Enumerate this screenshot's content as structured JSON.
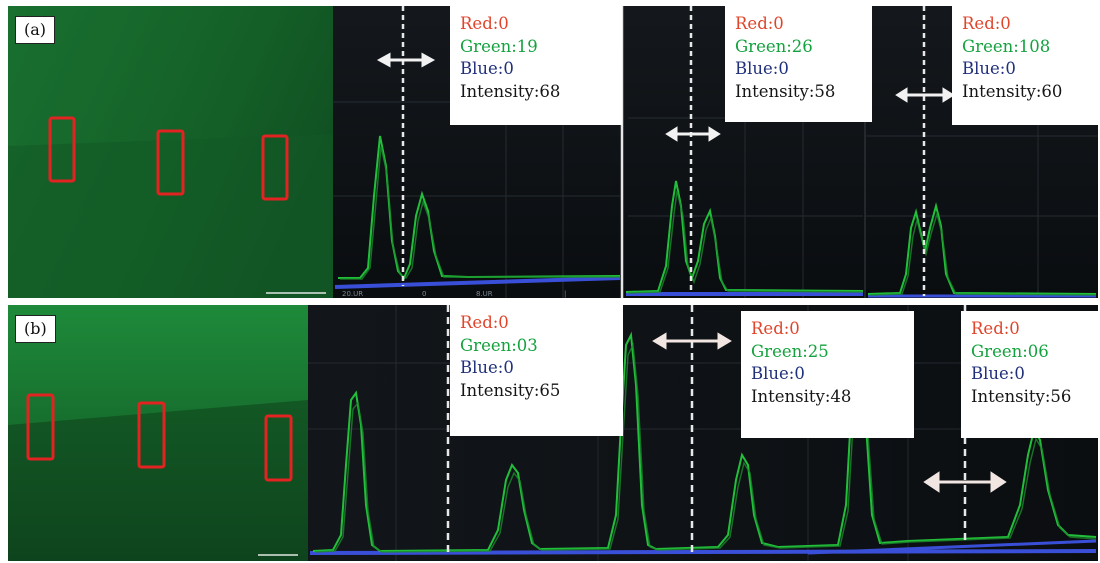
{
  "panels": [
    {
      "label": "(a)",
      "readouts": [
        {
          "red": "Red:0",
          "green": "Green:19",
          "blue": "Blue:0",
          "intensity": "Intensity:68"
        },
        {
          "red": "Red:0",
          "green": "Green:26",
          "blue": "Blue:0",
          "intensity": "Intensity:58"
        },
        {
          "red": "Red:0",
          "green": "Green:108",
          "blue": "Blue:0",
          "intensity": "Intensity:60"
        }
      ]
    },
    {
      "label": "(b)",
      "readouts": [
        {
          "red": "Red:0",
          "green": "Green:03",
          "blue": "Blue:0",
          "intensity": "Intensity:65"
        },
        {
          "red": "Red:0",
          "green": "Green:25",
          "blue": "Blue:0",
          "intensity": "Intensity:48"
        },
        {
          "red": "Red:0",
          "green": "Green:06",
          "blue": "Blue:0",
          "intensity": "Intensity:56"
        }
      ]
    }
  ],
  "colors": {
    "readout_red": "#e0452b",
    "readout_green": "#14a23e",
    "readout_blue": "#1f2f7a",
    "profile_line": "#22c03a",
    "roi_outline": "#e32222",
    "baseline": "#3a4fd8"
  }
}
